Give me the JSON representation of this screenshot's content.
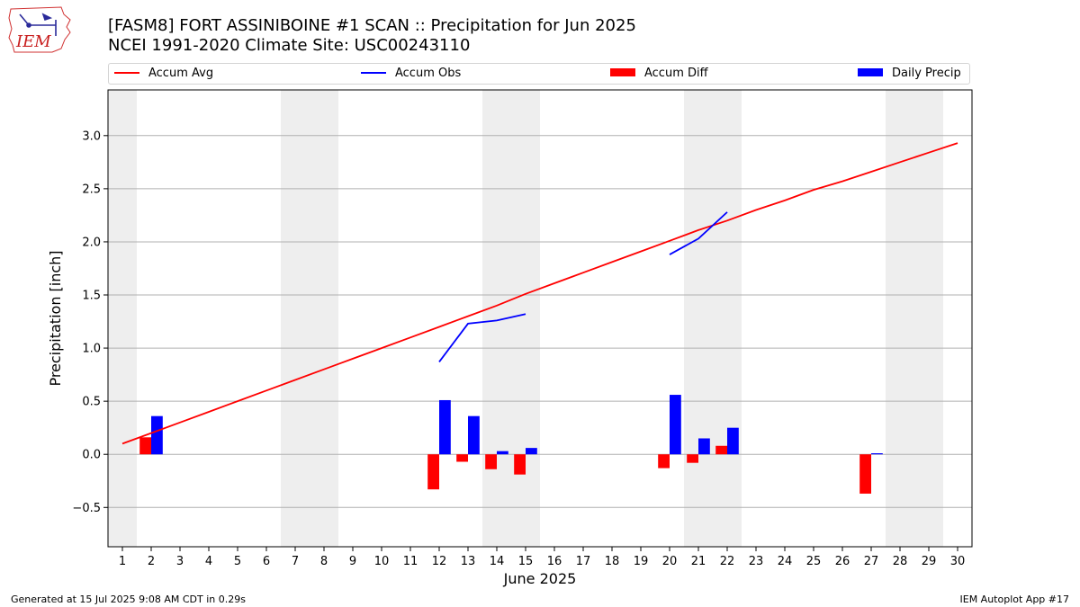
{
  "header": {
    "logo_text": "IEM",
    "title_line1": "[FASM8] FORT ASSINIBOINE #1 SCAN :: Precipitation for Jun 2025",
    "title_line2": "NCEI 1991-2020 Climate Site: USC00243110"
  },
  "legend": [
    {
      "label": "Accum Avg",
      "kind": "line",
      "color": "#ff0000"
    },
    {
      "label": "Accum Obs",
      "kind": "line",
      "color": "#0000ff"
    },
    {
      "label": "Accum Diff",
      "kind": "bar",
      "color": "#ff0000"
    },
    {
      "label": "Daily Precip",
      "kind": "bar",
      "color": "#0000ff"
    }
  ],
  "footer": {
    "left": "Generated at 15 Jul 2025 9:08 AM CDT in 0.29s",
    "right": "IEM Autoplot App #17"
  },
  "chart_data": {
    "type": "bar",
    "xlabel": "June 2025",
    "ylabel": "Precipitation [inch]",
    "x": [
      1,
      2,
      3,
      4,
      5,
      6,
      7,
      8,
      9,
      10,
      11,
      12,
      13,
      14,
      15,
      16,
      17,
      18,
      19,
      20,
      21,
      22,
      23,
      24,
      25,
      26,
      27,
      28,
      29,
      30
    ],
    "xlim": [
      0.5,
      30.5
    ],
    "ylim": [
      -0.87,
      3.43
    ],
    "yticks": [
      -0.5,
      0.0,
      0.5,
      1.0,
      1.5,
      2.0,
      2.5,
      3.0
    ],
    "ytick_labels": [
      "−0.5",
      "0.0",
      "0.5",
      "1.0",
      "1.5",
      "2.0",
      "2.5",
      "3.0"
    ],
    "grid": "horizontal",
    "weekend_shading": [
      [
        0.5,
        1.5
      ],
      [
        6.5,
        8.5
      ],
      [
        13.5,
        15.5
      ],
      [
        20.5,
        22.5
      ],
      [
        27.5,
        29.5
      ]
    ],
    "shade_color": "#eeeeee",
    "series": [
      {
        "name": "Accum Avg",
        "kind": "line",
        "color": "#ff0000",
        "x": [
          1,
          2,
          3,
          4,
          5,
          6,
          7,
          8,
          9,
          10,
          11,
          12,
          13,
          14,
          15,
          16,
          17,
          18,
          19,
          20,
          21,
          22,
          23,
          24,
          25,
          26,
          27,
          28,
          29,
          30
        ],
        "values": [
          0.1,
          0.2,
          0.3,
          0.4,
          0.5,
          0.6,
          0.7,
          0.8,
          0.9,
          1.0,
          1.1,
          1.2,
          1.3,
          1.4,
          1.51,
          1.61,
          1.71,
          1.81,
          1.91,
          2.01,
          2.11,
          2.2,
          2.3,
          2.39,
          2.49,
          2.57,
          2.66,
          2.75,
          2.84,
          2.93
        ]
      },
      {
        "name": "Accum Obs",
        "kind": "line",
        "color": "#0000ff",
        "x": [
          12,
          13,
          14,
          15,
          null,
          20,
          21,
          22
        ],
        "values": [
          0.87,
          1.23,
          1.26,
          1.32,
          null,
          1.88,
          2.03,
          2.28
        ]
      },
      {
        "name": "Accum Diff",
        "kind": "bar",
        "color": "#ff0000",
        "offset": -0.2,
        "x": [
          2,
          12,
          13,
          14,
          15,
          20,
          21,
          22,
          27
        ],
        "values": [
          0.16,
          -0.33,
          -0.07,
          -0.14,
          -0.19,
          -0.13,
          -0.08,
          0.08,
          -0.37
        ]
      },
      {
        "name": "Daily Precip",
        "kind": "bar",
        "color": "#0000ff",
        "offset": 0.2,
        "x": [
          2,
          12,
          13,
          14,
          15,
          20,
          21,
          22,
          27
        ],
        "values": [
          0.36,
          0.51,
          0.36,
          0.03,
          0.06,
          0.56,
          0.15,
          0.25,
          0.01
        ]
      }
    ]
  }
}
